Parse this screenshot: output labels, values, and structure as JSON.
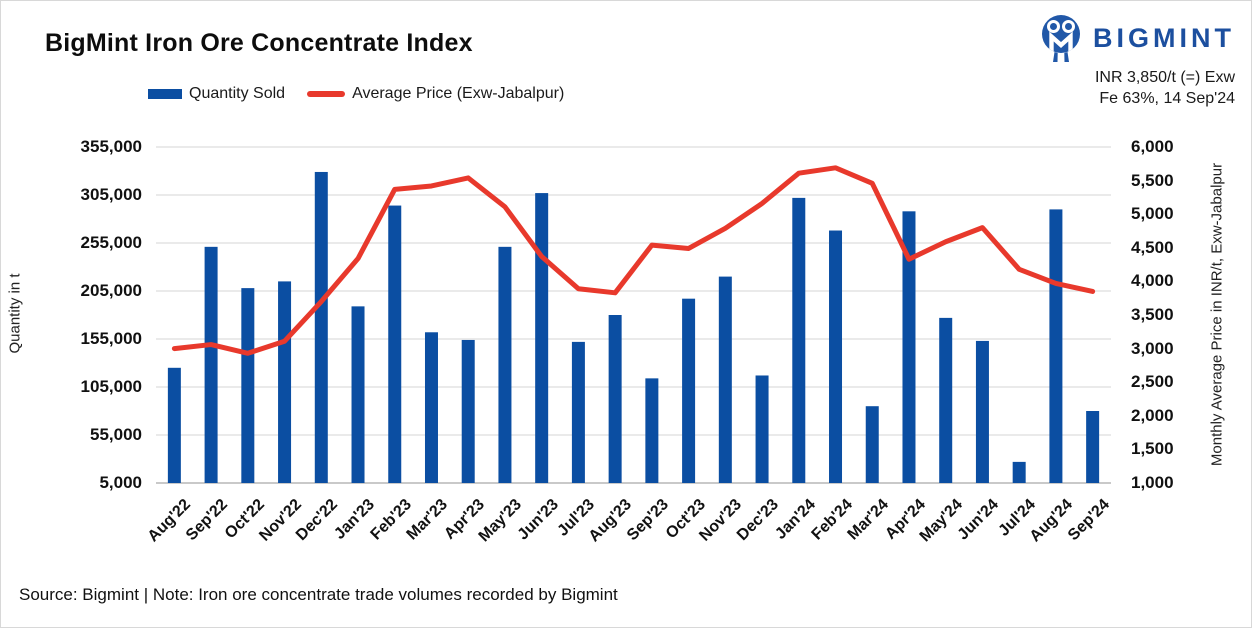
{
  "header": {
    "title": "BigMint Iron Ore Concentrate Index",
    "brand": {
      "name": "BIGMINT",
      "icon": "bigmint-people-logo",
      "text_color": "#1C4F9F",
      "icon_color": "#2158A8"
    },
    "price_note": {
      "line1": "INR 3,850/t (=) Exw",
      "line2": "Fe 63%, 14 Sep'24"
    }
  },
  "legend": {
    "items": [
      {
        "label": "Quantity Sold",
        "swatch": "bar",
        "color": "#0B4EA2"
      },
      {
        "label": "Average Price (Exw-Jabalpur)",
        "swatch": "line",
        "color": "#E8392C"
      }
    ]
  },
  "footer": {
    "source_note": "Source: Bigmint | Note: Iron ore concentrate trade volumes recorded by Bigmint"
  },
  "chart_data": {
    "type": "combo bar+line",
    "title": "BigMint Iron Ore Concentrate Index",
    "categories": [
      "Aug'22",
      "Sep'22",
      "Oct'22",
      "Nov'22",
      "Dec'22",
      "Jan'23",
      "Feb'23",
      "Mar'23",
      "Apr'23",
      "May'23",
      "Jun'23",
      "Jul'23",
      "Aug'23",
      "Sep'23",
      "Oct'23",
      "Nov'23",
      "Dec'23",
      "Jan'24",
      "Feb'24",
      "Mar'24",
      "Apr'24",
      "May'24",
      "Jun'24",
      "Jul'24",
      "Aug'24",
      "Sep'24"
    ],
    "series": [
      {
        "name": "Quantity Sold",
        "type": "bar",
        "yaxis": "left",
        "color": "#0B4EA2",
        "values": [
          125000,
          251000,
          208000,
          215000,
          329000,
          189000,
          294000,
          162000,
          154000,
          251000,
          307000,
          152000,
          180000,
          114000,
          197000,
          220000,
          117000,
          302000,
          268000,
          85000,
          288000,
          177000,
          153000,
          27000,
          290000,
          80000
        ]
      },
      {
        "name": "Average Price (Exw-Jabalpur)",
        "type": "line",
        "yaxis": "right",
        "color": "#E8392C",
        "values": [
          3000,
          3060,
          2930,
          3110,
          3700,
          4340,
          5370,
          5420,
          5540,
          5110,
          4370,
          3890,
          3830,
          4540,
          4490,
          4790,
          5160,
          5610,
          5690,
          5460,
          4330,
          4590,
          4800,
          4180,
          3970,
          3850
        ]
      }
    ],
    "left_axis": {
      "title": "Quantity in t",
      "min": 5000,
      "max": 355000,
      "tick_step": 50000,
      "ticks": [
        355000,
        305000,
        255000,
        205000,
        155000,
        105000,
        55000,
        5000
      ]
    },
    "right_axis": {
      "title": "Monthly Average Price in INR/t, Exw-Jabalpur",
      "min": 1000,
      "max": 6000,
      "tick_step": 500,
      "ticks": [
        6000,
        5500,
        5000,
        4500,
        4000,
        3500,
        3000,
        2500,
        2000,
        1500,
        1000
      ]
    },
    "grid": true,
    "gridline_color": "#e4e4e4",
    "axis_line_color": "#c9c9c9",
    "legend_position": "top"
  }
}
